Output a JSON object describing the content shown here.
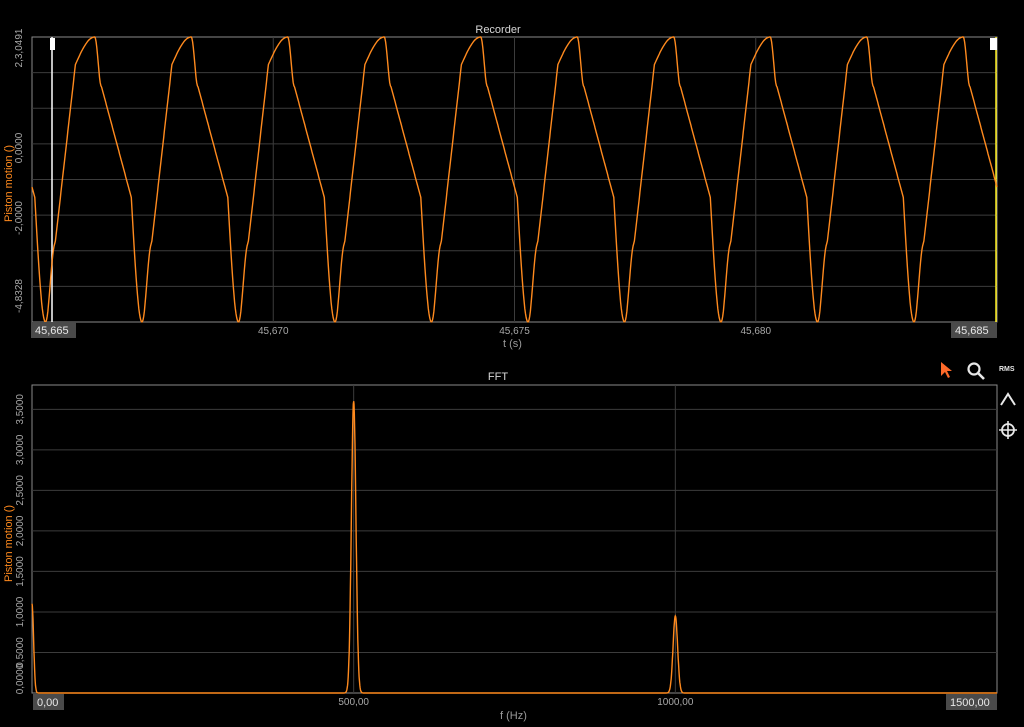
{
  "chart_data": [
    {
      "type": "line",
      "title": "Recorder",
      "xlabel": "t (s)",
      "ylabel": "Piston motion ()",
      "xlim": [
        45.665,
        45.685
      ],
      "ylim": [
        -4.8328,
        3.0491
      ],
      "x_ticks": [
        "45,670",
        "45,675",
        "45,680"
      ],
      "x_range_labels": [
        "45,665",
        "45,685"
      ],
      "y_ticks": [
        "2,3,0491",
        "0,0000",
        "-2,0000",
        "-4,8328"
      ],
      "series": [
        {
          "color": "#ff8a1e",
          "frequency_hz": 500,
          "period_s": 0.002,
          "max": 3.0491,
          "min": -4.8328,
          "first_peak_t": 45.6663
        }
      ]
    },
    {
      "type": "line",
      "title": "FFT",
      "xlabel": "f (Hz)",
      "ylabel": "Piston motion ()",
      "xlim": [
        0,
        1500
      ],
      "ylim": [
        0,
        3.8
      ],
      "x_ticks": [
        "500,00",
        "1000,00"
      ],
      "x_range_labels": [
        "0,00",
        "1500,00"
      ],
      "y_ticks": [
        "3,5000",
        "3,0000",
        "2,5000",
        "2,0000",
        "1,5000",
        "1,0000",
        "0,5000",
        "0,0000"
      ],
      "series": [
        {
          "color": "#ff8a1e",
          "peaks": [
            {
              "f": 0,
              "amp": 1.1
            },
            {
              "f": 500,
              "amp": 3.6
            },
            {
              "f": 1000,
              "amp": 0.95
            }
          ]
        }
      ]
    }
  ],
  "toolbar": {
    "rms_label": "RMS",
    "cursor_icon": "cursor-arrow-icon",
    "zoom_icon": "magnifier-icon",
    "peak_icon": "peak-icon",
    "crosshair_icon": "crosshair-icon"
  }
}
